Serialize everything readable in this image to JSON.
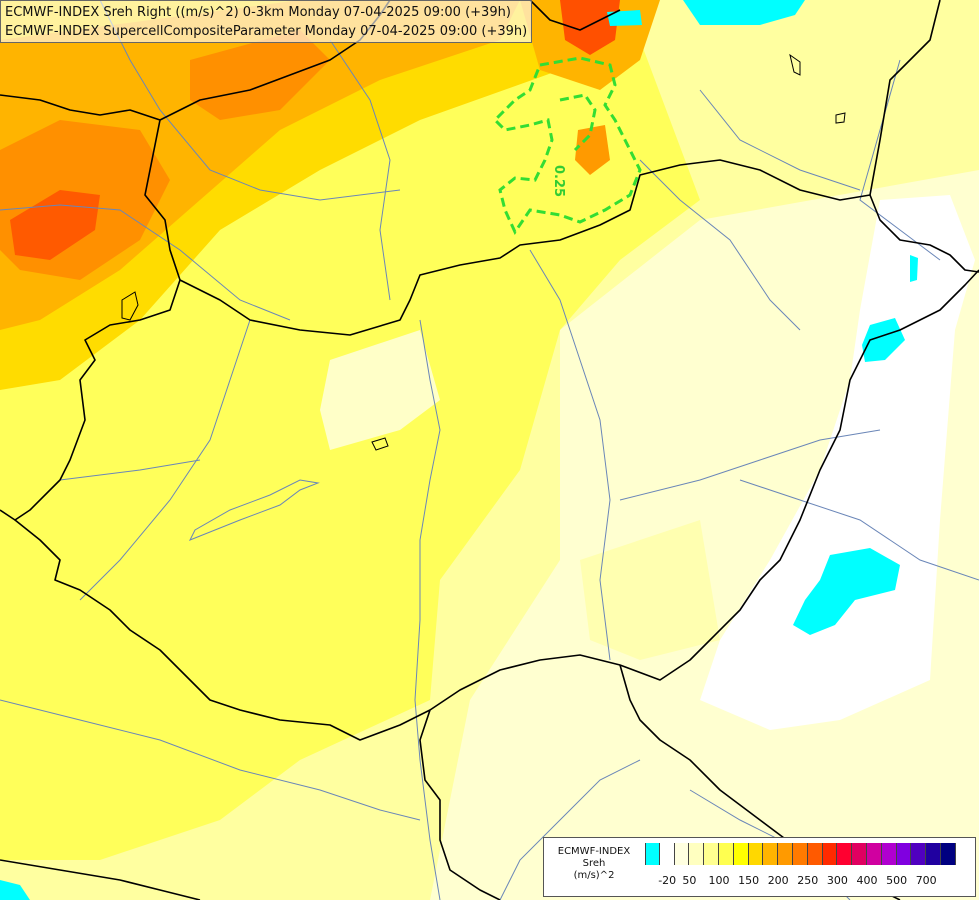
{
  "title": {
    "line1": "ECMWF-INDEX Sreh Right ((m/s)^2) 0-3km Monday 07-04-2025 09:00 (+39h)",
    "line2": "ECMWF-INDEX SupercellCompositeParameter Monday 07-04-2025 09:00 (+39h)"
  },
  "contour_label": "0.25",
  "legend": {
    "source": "ECMWF-INDEX",
    "variable": "Sreh",
    "unit": "(m/s)^2",
    "colors": [
      "#00ffff",
      "#ffffff",
      "#ffffe0",
      "#ffffc0",
      "#ffff90",
      "#ffff50",
      "#ffff00",
      "#ffd800",
      "#ffb400",
      "#ff9a00",
      "#ff7a00",
      "#ff5a00",
      "#ff2a00",
      "#ff0030",
      "#e00060",
      "#d000a0",
      "#b000d0",
      "#8000e0",
      "#5000c0",
      "#2000a0",
      "#000080"
    ],
    "tick_labels": [
      "-20",
      "50",
      "100",
      "150",
      "200",
      "250",
      "300",
      "400",
      "500",
      "700"
    ]
  },
  "colors": {
    "border": "#000000",
    "river": "#5577aa",
    "contour": "#33dd33",
    "cyan": "#00ffff"
  }
}
